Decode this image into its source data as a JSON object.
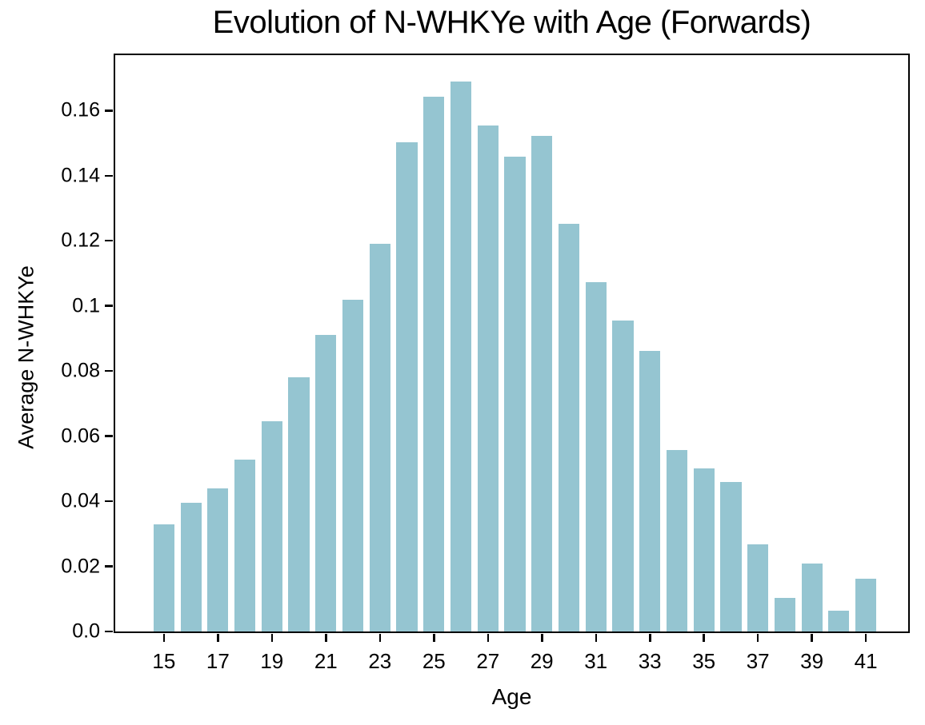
{
  "chart_data": {
    "type": "bar",
    "title": "Evolution of N-WHKYe with Age (Forwards)",
    "xlabel": "Age",
    "ylabel": "Average N-WHKYe",
    "categories": [
      15,
      16,
      17,
      18,
      19,
      20,
      21,
      22,
      23,
      24,
      25,
      26,
      27,
      28,
      29,
      30,
      31,
      32,
      33,
      34,
      35,
      36,
      37,
      38,
      39,
      40,
      41
    ],
    "values": [
      0.0328,
      0.0395,
      0.0439,
      0.0528,
      0.0645,
      0.0782,
      0.091,
      0.1018,
      0.1191,
      0.1502,
      0.1643,
      0.1688,
      0.1553,
      0.1458,
      0.1522,
      0.1252,
      0.1072,
      0.0956,
      0.0863,
      0.0557,
      0.0502,
      0.0459,
      0.0267,
      0.0104,
      0.0209,
      0.0063,
      0.0163
    ],
    "x_tick_labels": [
      "15",
      "17",
      "19",
      "21",
      "23",
      "25",
      "27",
      "29",
      "31",
      "33",
      "35",
      "37",
      "39",
      "41"
    ],
    "x_tick_every": 2,
    "y_ticks": [
      0.0,
      0.02,
      0.04,
      0.06,
      0.08,
      0.1,
      0.12,
      0.14,
      0.16
    ],
    "y_tick_labels": [
      "0.0",
      "0.02",
      "0.04",
      "0.06",
      "0.08",
      "0.1",
      "0.12",
      "0.14",
      "0.16"
    ],
    "ylim": [
      0,
      0.177
    ],
    "grid": false,
    "legend": null,
    "bar_color": "#95c5d1",
    "axis_color": "#000000",
    "text_color": "#000000"
  }
}
